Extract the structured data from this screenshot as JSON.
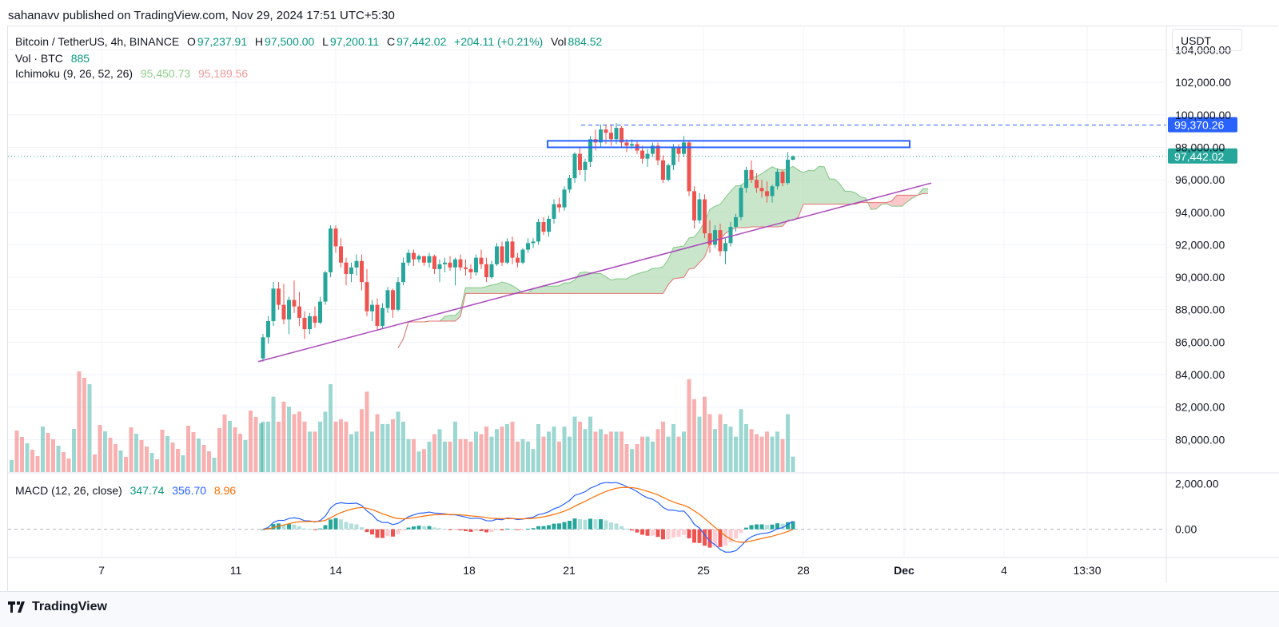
{
  "header": {
    "publisher": "sahanavv published on TradingView.com, Nov 29, 2024 17:51 UTC+5:30"
  },
  "legend": {
    "symbol": "Bitcoin / TetherUS, 4h, BINANCE",
    "o_label": "O",
    "o_value": "97,237.91",
    "h_label": "H",
    "h_value": "97,500.00",
    "l_label": "L",
    "l_value": "97,200.11",
    "c_label": "C",
    "c_value": "97,442.02",
    "change": "+204.11 (+0.21%)",
    "vol_label": "Vol",
    "vol_value": "884.52",
    "vol_indicator": "Vol · BTC",
    "vol_indicator_value": "885",
    "ichimoku": "Ichimoku (9, 26, 52, 26)",
    "ichimoku_a": "95,450.73",
    "ichimoku_b": "95,189.56",
    "macd": "MACD (12, 26, close)",
    "macd_hist": "347.74",
    "macd_line": "356.70",
    "macd_signal": "8.96"
  },
  "currency": "USDT",
  "price_axis": [
    "104,000.00",
    "102,000.00",
    "100,000.00",
    "98,000.00",
    "96,000.00",
    "94,000.00",
    "92,000.00",
    "90,000.00",
    "88,000.00",
    "86,000.00",
    "84,000.00",
    "82,000.00",
    "80,000.00"
  ],
  "price_badges": {
    "resistance": "99,370.26",
    "last": "97,442.02"
  },
  "macd_axis": [
    "2,000.00",
    "0.00"
  ],
  "time_axis": [
    "7",
    "11",
    "14",
    "18",
    "21",
    "25",
    "28",
    "Dec",
    "4",
    "13:30"
  ],
  "footer": {
    "brand": "TradingView"
  },
  "colors": {
    "up": "#26a69a",
    "down": "#ef5350",
    "cloud_bull": "#a5d6a7",
    "cloud_bear": "#f8a5a5",
    "trendline": "#ab47bc",
    "resistance": "#2962ff",
    "macd": "#2962ff",
    "signal": "#ff6d00"
  },
  "chart_data": {
    "type": "candlestick",
    "series": [
      {
        "name": "Bitcoin / TetherUS",
        "values": [
          [
            85000,
            86500,
            84800,
            86300
          ],
          [
            86300,
            87600,
            85900,
            87300
          ],
          [
            87300,
            89700,
            87000,
            89300
          ],
          [
            89300,
            89700,
            88000,
            88300
          ],
          [
            88300,
            89600,
            87100,
            87400
          ],
          [
            87400,
            88800,
            86500,
            88600
          ],
          [
            88600,
            89800,
            87800,
            88200
          ],
          [
            88200,
            89100,
            87000,
            87500
          ],
          [
            87500,
            87900,
            86200,
            86800
          ],
          [
            86800,
            87800,
            86500,
            87600
          ],
          [
            87600,
            88200,
            86900,
            87200
          ],
          [
            87200,
            88800,
            87100,
            88500
          ],
          [
            88500,
            90400,
            88300,
            90300
          ],
          [
            90300,
            93200,
            90000,
            93000
          ],
          [
            93000,
            93200,
            91500,
            91900
          ],
          [
            91900,
            92400,
            90600,
            90900
          ],
          [
            90900,
            91200,
            89500,
            90200
          ],
          [
            90200,
            90900,
            89700,
            90600
          ],
          [
            90600,
            91400,
            90100,
            91000
          ],
          [
            91000,
            91400,
            89200,
            89700
          ],
          [
            89700,
            90500,
            87600,
            87900
          ],
          [
            87900,
            88600,
            87300,
            88300
          ],
          [
            88300,
            88700,
            86700,
            87000
          ],
          [
            87000,
            88400,
            86800,
            88100
          ],
          [
            88100,
            89400,
            87800,
            89200
          ],
          [
            89200,
            89300,
            87500,
            88000
          ],
          [
            88000,
            90000,
            87900,
            89700
          ],
          [
            89700,
            91200,
            89500,
            90900
          ],
          [
            90900,
            91700,
            90700,
            91500
          ],
          [
            91500,
            91700,
            90700,
            91100
          ],
          [
            91100,
            91400,
            90900,
            91300
          ],
          [
            91300,
            91300,
            90700,
            90900
          ],
          [
            90900,
            91500,
            90600,
            91300
          ],
          [
            91300,
            91400,
            90200,
            90500
          ],
          [
            90500,
            91100,
            89700,
            90800
          ],
          [
            90800,
            91200,
            90300,
            90900
          ],
          [
            90900,
            91300,
            90400,
            90600
          ],
          [
            90600,
            91200,
            89500,
            91100
          ],
          [
            91100,
            91400,
            90400,
            90600
          ],
          [
            90600,
            91100,
            90100,
            90500
          ],
          [
            90500,
            90800,
            89900,
            90300
          ],
          [
            90300,
            91400,
            90100,
            91200
          ],
          [
            91200,
            91700,
            90500,
            90800
          ],
          [
            90800,
            91200,
            89700,
            90000
          ],
          [
            90000,
            91000,
            89900,
            90800
          ],
          [
            90800,
            92100,
            90700,
            91900
          ],
          [
            91900,
            92200,
            90700,
            90900
          ],
          [
            90900,
            92400,
            90800,
            92200
          ],
          [
            92200,
            92500,
            90800,
            91200
          ],
          [
            91200,
            91500,
            90600,
            90900
          ],
          [
            90900,
            91800,
            90800,
            91700
          ],
          [
            91700,
            92400,
            91500,
            92100
          ],
          [
            92100,
            92400,
            91800,
            92200
          ],
          [
            92200,
            93600,
            92000,
            93400
          ],
          [
            93400,
            93700,
            92600,
            92800
          ],
          [
            92800,
            93800,
            92500,
            93600
          ],
          [
            93600,
            94800,
            93300,
            94500
          ],
          [
            94500,
            94900,
            94000,
            94300
          ],
          [
            94300,
            95600,
            94100,
            95400
          ],
          [
            95400,
            96300,
            95200,
            96100
          ],
          [
            96100,
            97700,
            95800,
            97600
          ],
          [
            97600,
            98000,
            96300,
            96600
          ],
          [
            96600,
            97300,
            95900,
            97100
          ],
          [
            97100,
            98700,
            96800,
            98500
          ],
          [
            98500,
            99100,
            97800,
            98300
          ],
          [
            98300,
            99400,
            98000,
            99100
          ],
          [
            99100,
            99400,
            98200,
            98900
          ],
          [
            98900,
            99400,
            98100,
            98500
          ],
          [
            98500,
            99500,
            98200,
            99200
          ],
          [
            99200,
            99300,
            98000,
            98300
          ],
          [
            98300,
            98500,
            97700,
            98100
          ],
          [
            98100,
            98500,
            97900,
            98200
          ],
          [
            98200,
            98400,
            97600,
            97800
          ],
          [
            97800,
            98100,
            97000,
            97300
          ],
          [
            97300,
            97900,
            96800,
            97600
          ],
          [
            97600,
            98300,
            97400,
            98100
          ],
          [
            98100,
            98300,
            96900,
            97200
          ],
          [
            97200,
            97500,
            95800,
            96000
          ],
          [
            96000,
            97000,
            95900,
            96900
          ],
          [
            96900,
            98200,
            96600,
            98000
          ],
          [
            98000,
            98200,
            97100,
            97600
          ],
          [
            97600,
            98700,
            97400,
            98300
          ],
          [
            98300,
            98400,
            95000,
            95300
          ],
          [
            95300,
            95600,
            93000,
            93500
          ],
          [
            93500,
            95200,
            93300,
            94800
          ],
          [
            94800,
            95100,
            92400,
            92700
          ],
          [
            92700,
            93500,
            91500,
            92000
          ],
          [
            92000,
            93200,
            91800,
            92900
          ],
          [
            92900,
            93300,
            91300,
            91600
          ],
          [
            91600,
            92400,
            90800,
            92100
          ],
          [
            92100,
            93400,
            91900,
            93100
          ],
          [
            93100,
            93900,
            92800,
            93700
          ],
          [
            93700,
            95700,
            93500,
            95500
          ],
          [
            95500,
            96800,
            95200,
            96600
          ],
          [
            96600,
            97200,
            95800,
            96000
          ],
          [
            96000,
            96400,
            95200,
            95500
          ],
          [
            95500,
            96000,
            94900,
            95300
          ],
          [
            95300,
            95900,
            94600,
            95000
          ],
          [
            95000,
            95700,
            94600,
            95600
          ],
          [
            95600,
            96700,
            95400,
            96500
          ],
          [
            96500,
            96600,
            95600,
            95800
          ],
          [
            95800,
            97700,
            95700,
            97240
          ],
          [
            97237.91,
            97500,
            97200.11,
            97442.02
          ]
        ]
      }
    ],
    "ylim": [
      78000,
      105500
    ],
    "resistance_line": 99370.26,
    "resistance_zone": [
      98000,
      98400
    ],
    "macd_ylim": [
      -1200,
      2400
    ],
    "legend_placement": "top-left",
    "grid": true
  }
}
